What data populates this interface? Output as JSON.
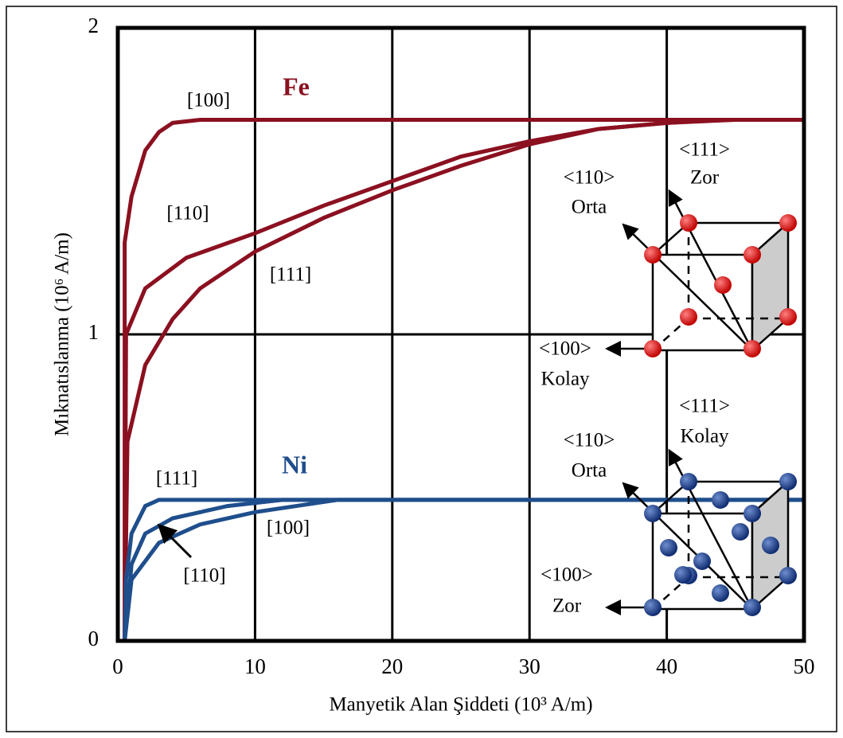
{
  "chart_data": {
    "type": "line",
    "x_label": "Manyetik Alan Şiddeti (10³ A/m)",
    "y_label": "Mıknatıslanma (10⁶ A/m)",
    "xlim": [
      0,
      50
    ],
    "ylim": [
      0,
      2
    ],
    "xticks": [
      0,
      10,
      20,
      30,
      40,
      50
    ],
    "yticks": [
      0,
      1,
      2
    ],
    "grid": true,
    "series": [
      {
        "name": "[100]",
        "color": "#8b1020",
        "x": [
          0.5,
          0.5,
          1,
          2,
          3,
          4,
          6,
          50
        ],
        "values": [
          0,
          1.3,
          1.45,
          1.6,
          1.66,
          1.69,
          1.7,
          1.7
        ]
      },
      {
        "name": "[110]",
        "color": "#8b1020",
        "x": [
          0.5,
          0.6,
          2,
          5,
          10,
          15,
          20,
          25,
          30,
          35,
          40,
          45,
          50
        ],
        "values": [
          0,
          1.0,
          1.15,
          1.25,
          1.33,
          1.42,
          1.5,
          1.58,
          1.63,
          1.67,
          1.69,
          1.7,
          1.7
        ]
      },
      {
        "name": "[111]",
        "color": "#8b1020",
        "x": [
          0.5,
          0.7,
          2,
          4,
          6,
          10,
          15,
          20,
          25,
          30,
          35,
          40,
          44,
          50
        ],
        "values": [
          0,
          0.65,
          0.9,
          1.05,
          1.15,
          1.27,
          1.38,
          1.47,
          1.55,
          1.62,
          1.67,
          1.69,
          1.7,
          1.7
        ]
      },
      {
        "name": "[111]",
        "color": "#1f4e8c",
        "x": [
          0.5,
          0.6,
          1,
          2,
          3,
          50
        ],
        "values": [
          0,
          0.2,
          0.35,
          0.44,
          0.46,
          0.46
        ]
      },
      {
        "name": "[110]",
        "color": "#1f4e8c",
        "x": [
          0.5,
          1,
          2,
          4,
          8,
          12,
          50
        ],
        "values": [
          0,
          0.25,
          0.35,
          0.4,
          0.44,
          0.46,
          0.46
        ]
      },
      {
        "name": "[100]",
        "color": "#1f4e8c",
        "x": [
          0.5,
          1,
          3,
          6,
          10,
          16,
          50
        ],
        "values": [
          0,
          0.2,
          0.32,
          0.38,
          0.42,
          0.46,
          0.46
        ]
      }
    ],
    "annotations": [
      "Fe",
      "Ni",
      "<111>",
      "Zor",
      "<110>",
      "Orta",
      "<100>",
      "Kolay",
      "<111>",
      "Kolay",
      "<110>",
      "Orta",
      "<100>",
      "Zor"
    ]
  }
}
